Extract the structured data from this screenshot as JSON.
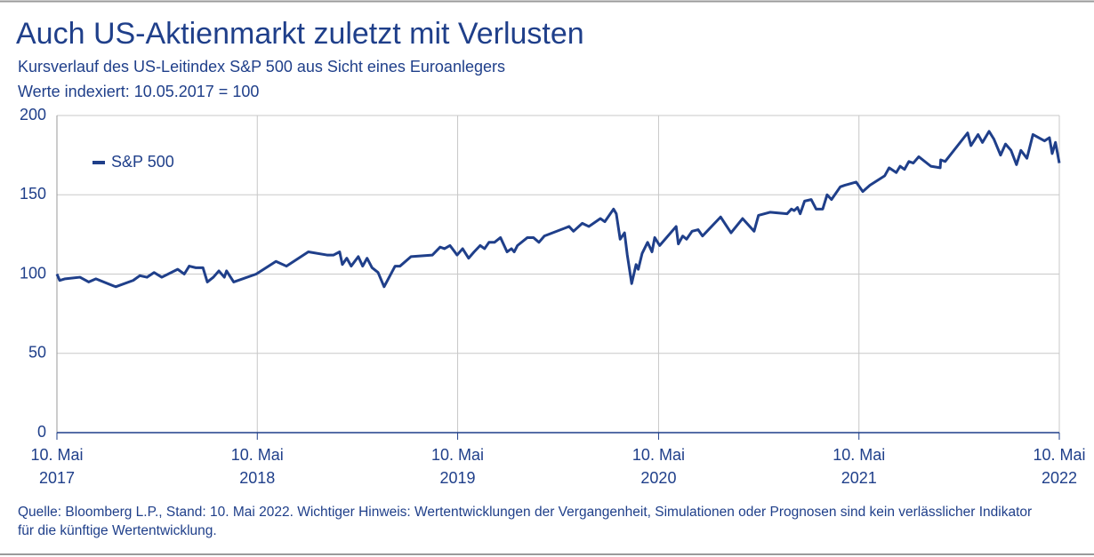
{
  "chart_data": {
    "type": "line",
    "title": "Auch US-Aktienmarkt zuletzt mit Verlusten",
    "subtitle": [
      "Kursverlauf des US-Leitindex S&P 500 aus Sicht eines Euroanlegers",
      "Werte indexiert: 10.05.2017 = 100"
    ],
    "footnote": "Quelle: Bloomberg L.P., Stand: 10. Mai 2022. Wichtiger Hinweis: Wertentwicklungen der Vergangenheit, Simulationen oder Prognosen sind kein verlässlicher Indikator für die künftige Wertentwicklung.",
    "x": [
      "2017-05-10",
      "2017-05-15",
      "2017-05-25",
      "2017-06-21",
      "2017-07-07",
      "2017-07-20",
      "2017-08-25",
      "2017-09-26",
      "2017-10-08",
      "2017-10-21",
      "2017-11-03",
      "2017-11-17",
      "2017-12-16",
      "2017-12-28",
      "2018-01-06",
      "2018-01-18",
      "2018-01-31",
      "2018-02-08",
      "2018-02-19",
      "2018-03-01",
      "2018-03-11",
      "2018-03-15",
      "2018-03-28",
      "2018-05-08",
      "2018-06-13",
      "2018-07-02",
      "2018-08-11",
      "2018-09-14",
      "2018-09-26",
      "2018-10-07",
      "2018-10-12",
      "2018-10-20",
      "2018-10-28",
      "2018-11-10",
      "2018-11-18",
      "2018-11-26",
      "2018-12-05",
      "2018-12-16",
      "2018-12-27",
      "2019-01-16",
      "2019-01-25",
      "2019-02-14",
      "2019-03-25",
      "2019-04-08",
      "2019-04-16",
      "2019-04-26",
      "2019-05-09",
      "2019-05-19",
      "2019-05-30",
      "2019-06-09",
      "2019-06-20",
      "2019-06-28",
      "2019-07-06",
      "2019-07-16",
      "2019-07-27",
      "2019-08-08",
      "2019-08-16",
      "2019-08-21",
      "2019-08-27",
      "2019-09-14",
      "2019-09-25",
      "2019-10-05",
      "2019-10-15",
      "2019-11-29",
      "2019-12-07",
      "2019-12-23",
      "2020-01-04",
      "2020-01-25",
      "2020-02-02",
      "2020-02-18",
      "2020-02-23",
      "2020-03-01",
      "2020-03-09",
      "2020-03-14",
      "2020-03-22",
      "2020-03-30",
      "2020-04-03",
      "2020-04-10",
      "2020-04-20",
      "2020-04-28",
      "2020-05-03",
      "2020-05-12",
      "2020-06-11",
      "2020-06-15",
      "2020-06-23",
      "2020-06-30",
      "2020-07-10",
      "2020-07-21",
      "2020-07-29",
      "2020-08-31",
      "2020-09-19",
      "2020-10-10",
      "2020-10-31",
      "2020-11-08",
      "2020-11-29",
      "2020-12-30",
      "2021-01-07",
      "2021-01-12",
      "2021-01-18",
      "2021-01-23",
      "2021-01-31",
      "2021-02-12",
      "2021-02-21",
      "2021-03-05",
      "2021-03-13",
      "2021-03-21",
      "2021-04-06",
      "2021-04-14",
      "2021-05-05",
      "2021-05-17",
      "2021-05-30",
      "2021-06-26",
      "2021-07-04",
      "2021-07-17",
      "2021-07-24",
      "2021-08-01",
      "2021-08-09",
      "2021-08-17",
      "2021-08-27",
      "2021-09-18",
      "2021-10-05",
      "2021-10-06",
      "2021-10-14",
      "2021-11-24",
      "2021-11-30",
      "2021-12-13",
      "2021-12-21",
      "2022-01-02",
      "2022-01-11",
      "2022-01-23",
      "2022-02-01",
      "2022-02-11",
      "2022-02-21",
      "2022-03-01",
      "2022-03-12",
      "2022-03-23",
      "2022-04-13",
      "2022-04-22",
      "2022-04-27",
      "2022-05-03",
      "2022-05-10"
    ],
    "series": [
      {
        "name": "S&P 500",
        "color": "#1f3f8a",
        "values": [
          100,
          96,
          97,
          98,
          95,
          97,
          92,
          96,
          99,
          98,
          101,
          98,
          103,
          100,
          105,
          104,
          104,
          95,
          98,
          102,
          98,
          102,
          95,
          100,
          108,
          105,
          114,
          112,
          112,
          114,
          106,
          110,
          105,
          111,
          105,
          110,
          104,
          101,
          92,
          105,
          105,
          111,
          112,
          117,
          116,
          118,
          112,
          116,
          110,
          114,
          118,
          116,
          120,
          120,
          123,
          114,
          116,
          114,
          118,
          123,
          123,
          120,
          124,
          130,
          127,
          132,
          130,
          135,
          133,
          141,
          138,
          122,
          126,
          112,
          94,
          106,
          103,
          113,
          120,
          114,
          123,
          118,
          130,
          119,
          124,
          122,
          127,
          128,
          124,
          136,
          126,
          135,
          127,
          137,
          139,
          138,
          141,
          140,
          142,
          138,
          146,
          147,
          141,
          141,
          150,
          147,
          155,
          156,
          158,
          152,
          156,
          162,
          167,
          164,
          168,
          166,
          171,
          170,
          174,
          168,
          167,
          172,
          171,
          189,
          181,
          188,
          183,
          190,
          185,
          175,
          182,
          178,
          169,
          178,
          173,
          188,
          184,
          186,
          176,
          183,
          170
        ]
      }
    ],
    "xlim": [
      "2017-05-10",
      "2022-05-10"
    ],
    "xticks": [
      {
        "value": "2017-05-10",
        "label": "10. Mai\n2017"
      },
      {
        "value": "2018-05-10",
        "label": "10. Mai\n2018"
      },
      {
        "value": "2019-05-10",
        "label": "10. Mai\n2019"
      },
      {
        "value": "2020-05-10",
        "label": "10. Mai\n2020"
      },
      {
        "value": "2021-05-10",
        "label": "10. Mai\n2021"
      },
      {
        "value": "2022-05-10",
        "label": "10. Mai\n2022"
      }
    ],
    "ylim": [
      0,
      200
    ],
    "yticks": [
      0,
      50,
      100,
      150,
      200
    ],
    "grid": true,
    "legend": "upper left"
  }
}
